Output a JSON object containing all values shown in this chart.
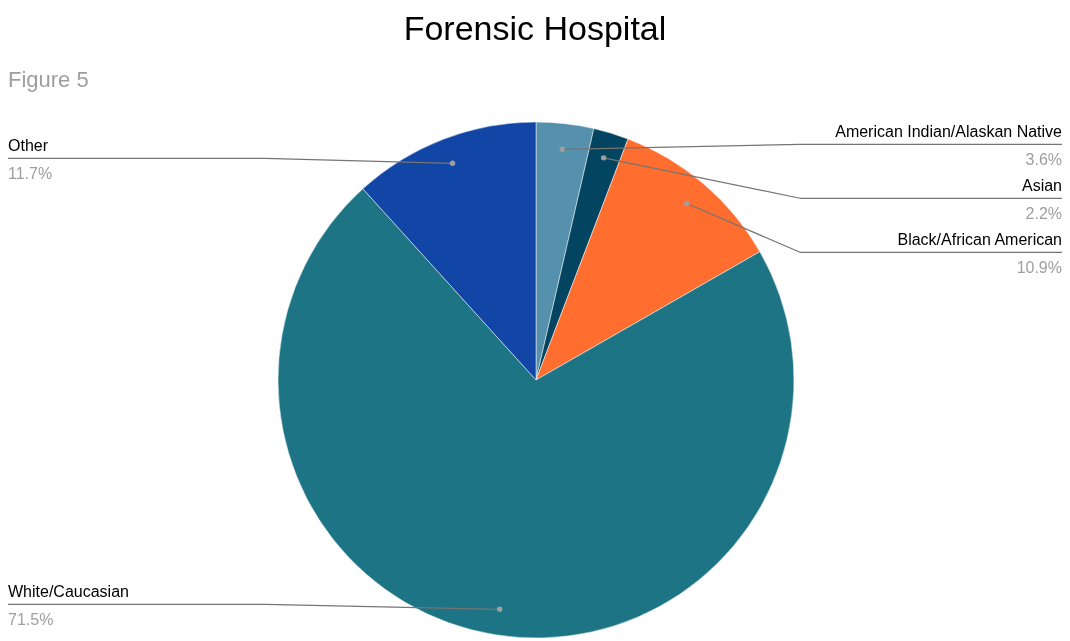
{
  "chart_data": {
    "type": "pie",
    "title": "Forensic Hospital",
    "annotations": [
      "Figure 5"
    ],
    "categories": [
      "American Indian/Alaskan Native",
      "Asian",
      "Black/African American",
      "White/Caucasian",
      "Other"
    ],
    "values": [
      3.6,
      2.2,
      10.9,
      71.5,
      11.7
    ],
    "value_labels": [
      "3.6%",
      "2.2%",
      "10.9%",
      "71.5%",
      "11.7%"
    ],
    "colors": [
      "#5591ad",
      "#034460",
      "#ff6d2f",
      "#1d7484",
      "#1145a6"
    ]
  }
}
